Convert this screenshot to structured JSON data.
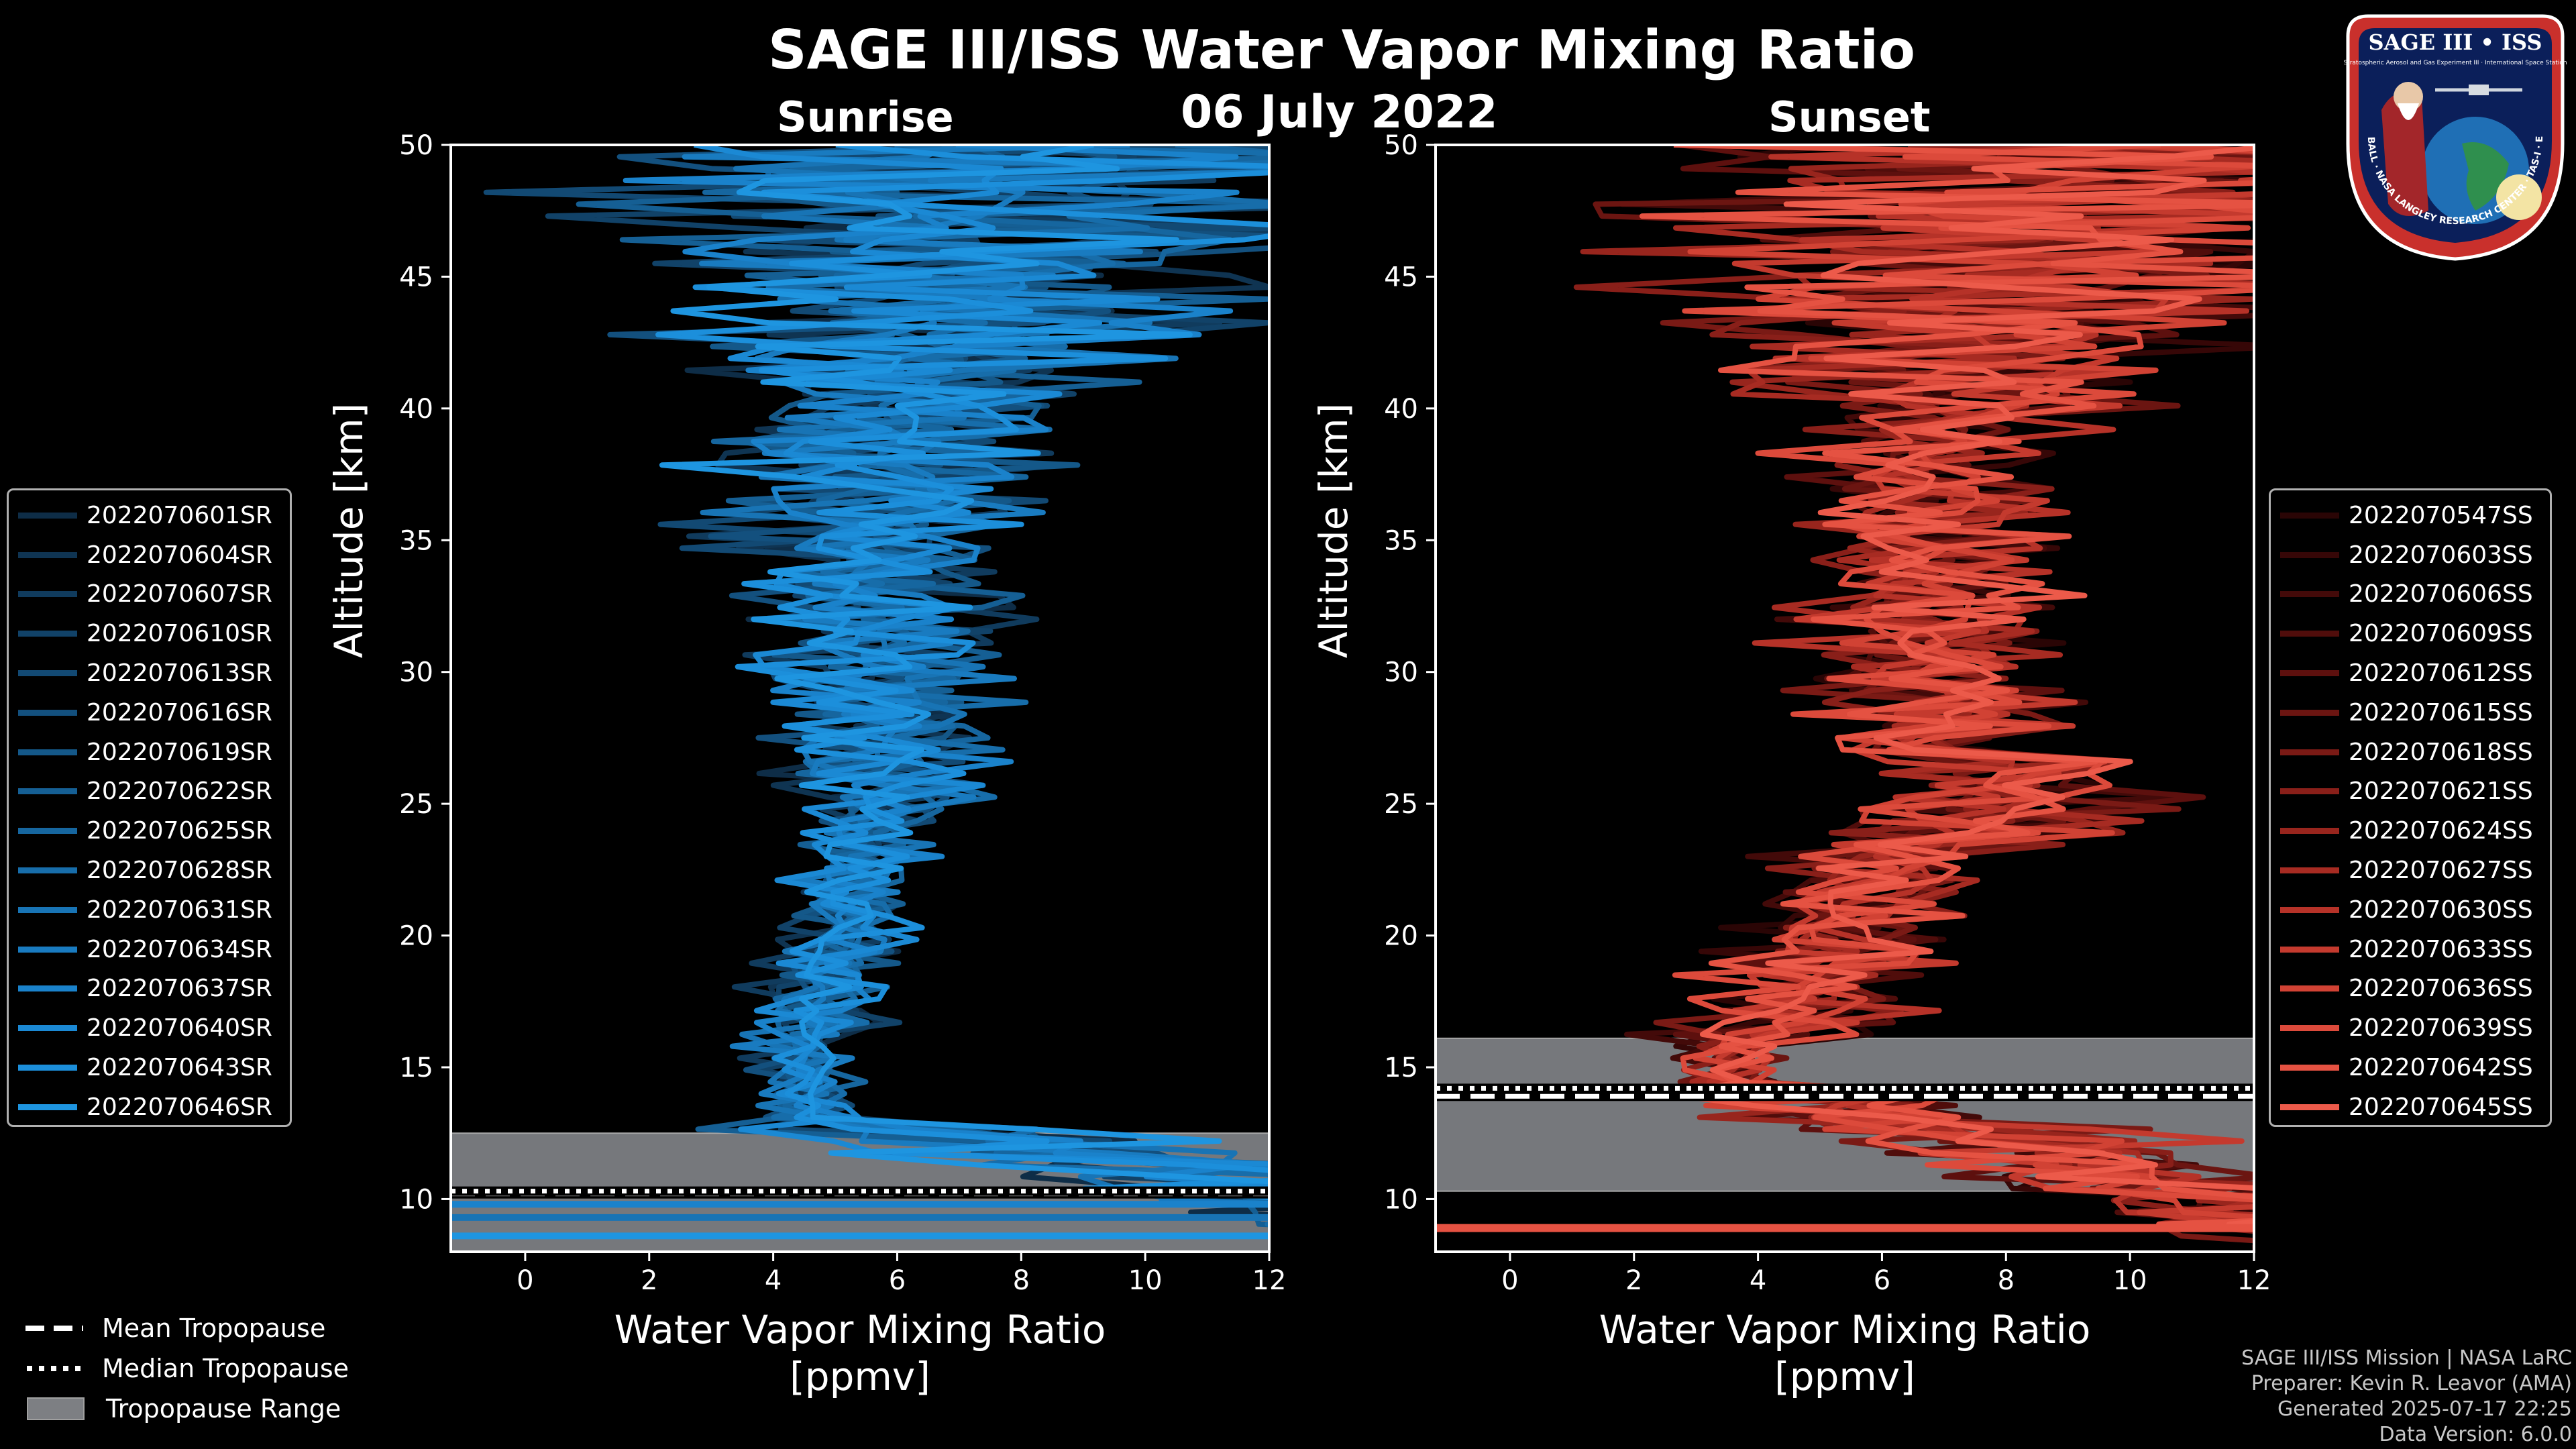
{
  "header": {
    "title": "SAGE III/ISS Water Vapor Mixing Ratio",
    "date": "06 July 2022",
    "sunrise_label": "Sunrise",
    "sunset_label": "Sunset"
  },
  "logo": {
    "top_text": "SAGE III • ISS",
    "sub_text": "Stratospheric Aerosol and Gas Experiment III · International Space Station",
    "ring_text": "BALL · NASA LANGLEY RESEARCH CENTER · TAS-I · ESA"
  },
  "chart_data": [
    {
      "type": "line",
      "panel": "Sunrise",
      "xlabel": "Water Vapor Mixing Ratio",
      "xlabel_units": "[ppmv]",
      "ylabel": "Altitude [km]",
      "xlim": [
        -1.2,
        12
      ],
      "ylim": [
        8,
        50
      ],
      "xticks": [
        0,
        2,
        4,
        6,
        8,
        10,
        12
      ],
      "yticks": [
        10,
        15,
        20,
        25,
        30,
        35,
        40,
        45,
        50
      ],
      "tropopause": {
        "mean": 10.2,
        "median": 10.3,
        "range": [
          8.0,
          12.5
        ]
      },
      "series": [
        {
          "name": "2022070601SR",
          "color": "#0e2d47"
        },
        {
          "name": "2022070604SR",
          "color": "#0f3452"
        },
        {
          "name": "2022070607SR",
          "color": "#103b5d"
        },
        {
          "name": "2022070610SR",
          "color": "#114268"
        },
        {
          "name": "2022070613SR",
          "color": "#124973"
        },
        {
          "name": "2022070616SR",
          "color": "#13507e"
        },
        {
          "name": "2022070619SR",
          "color": "#145889"
        },
        {
          "name": "2022070622SR",
          "color": "#155f94"
        },
        {
          "name": "2022070625SR",
          "color": "#16669f"
        },
        {
          "name": "2022070628SR",
          "color": "#176daa"
        },
        {
          "name": "2022070631SR",
          "color": "#1874b5"
        },
        {
          "name": "2022070634SR",
          "color": "#197bc0"
        },
        {
          "name": "2022070637SR",
          "color": "#1a82cb"
        },
        {
          "name": "2022070640SR",
          "color": "#1b89d4"
        },
        {
          "name": "2022070643SR",
          "color": "#1c8fdb"
        },
        {
          "name": "2022070646SR",
          "color": "#1e95e0"
        }
      ]
    },
    {
      "type": "line",
      "panel": "Sunset",
      "xlabel": "Water Vapor Mixing Ratio",
      "xlabel_units": "[ppmv]",
      "ylabel": "Altitude [km]",
      "xlim": [
        -1.2,
        12
      ],
      "ylim": [
        8,
        50
      ],
      "xticks": [
        0,
        2,
        4,
        6,
        8,
        10,
        12
      ],
      "yticks": [
        10,
        15,
        20,
        25,
        30,
        35,
        40,
        45,
        50
      ],
      "tropopause": {
        "mean": 13.9,
        "median": 14.2,
        "range": [
          10.3,
          16.1
        ]
      },
      "series": [
        {
          "name": "2022070547SS",
          "color": "#2a0505"
        },
        {
          "name": "2022070603SS",
          "color": "#360707"
        },
        {
          "name": "2022070606SS",
          "color": "#430a09"
        },
        {
          "name": "2022070609SS",
          "color": "#500d0b"
        },
        {
          "name": "2022070612SS",
          "color": "#5d100e"
        },
        {
          "name": "2022070615SS",
          "color": "#6b1511"
        },
        {
          "name": "2022070618SS",
          "color": "#7a1a15"
        },
        {
          "name": "2022070621SS",
          "color": "#891f19"
        },
        {
          "name": "2022070624SS",
          "color": "#98251d"
        },
        {
          "name": "2022070627SS",
          "color": "#a72b22"
        },
        {
          "name": "2022070630SS",
          "color": "#b63228"
        },
        {
          "name": "2022070633SS",
          "color": "#c43a2e"
        },
        {
          "name": "2022070636SS",
          "color": "#d14234"
        },
        {
          "name": "2022070639SS",
          "color": "#dc4a3b"
        },
        {
          "name": "2022070642SS",
          "color": "#e55242"
        },
        {
          "name": "2022070645SS",
          "color": "#ec5a4a"
        }
      ]
    }
  ],
  "legend_bottom": {
    "mean": "Mean Tropopause",
    "median": "Median Tropopause",
    "range": "Tropopause Range"
  },
  "credits": {
    "line1": "SAGE III/ISS Mission | NASA LaRC",
    "line2": "Preparer: Kevin R. Leavor (AMA)",
    "line3": "Generated 2025-07-17 22:25",
    "line4": "Data Version: 6.0.0"
  }
}
